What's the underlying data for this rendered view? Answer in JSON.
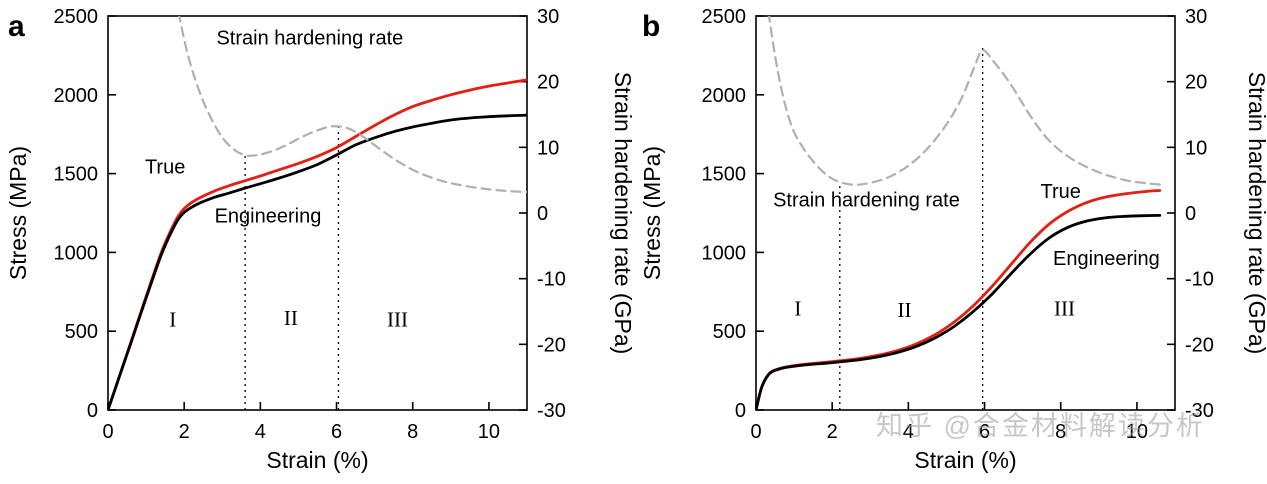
{
  "watermark": "知乎 @合金材料解读分析",
  "colors": {
    "true_curve": "#e41e10",
    "engineering_curve": "#000000",
    "hardening_curve": "#b0b0b0",
    "hardening_label": "#a9a9a9",
    "axis": "#000000",
    "watermark": "#9b9b9b"
  },
  "chart_data": [
    {
      "type": "line",
      "panel_label": "a",
      "xlabel": "Strain (%)",
      "ylabel_left": "Stress (MPa)",
      "ylabel_right": "Strain hardening rate (GPa)",
      "xlim": [
        0,
        11
      ],
      "ylim_left": [
        0,
        2500
      ],
      "ylim_right": [
        -30,
        30
      ],
      "x_ticks": [
        0,
        2,
        4,
        6,
        8,
        10
      ],
      "y_ticks_left": [
        0,
        500,
        1000,
        1500,
        2000,
        2500
      ],
      "y_ticks_right": [
        -30,
        -20,
        -10,
        0,
        10,
        20,
        30
      ],
      "grid": false,
      "dividers": [
        {
          "x": 3.6,
          "y_top": 1620
        },
        {
          "x": 6.05,
          "y_top": 1800
        }
      ],
      "regions": [
        {
          "label": "I",
          "x": 1.7,
          "y": 530
        },
        {
          "label": "II",
          "x": 4.8,
          "y": 540
        },
        {
          "label": "III",
          "x": 7.6,
          "y": 530
        }
      ],
      "annotations": [
        {
          "text": "Strain hardening rate",
          "color_key": "hardening_label",
          "x": 5.3,
          "y": 2320
        },
        {
          "text": "True",
          "color_key": "true_curve",
          "x": 1.5,
          "y": 1500
        },
        {
          "text": "Engineering",
          "color_key": "engineering_curve",
          "x": 4.2,
          "y": 1190
        }
      ],
      "series": [
        {
          "name": "True",
          "axis": "left",
          "color_key": "true_curve",
          "dash": "solid",
          "x": [
            0,
            0.3,
            0.6,
            1.0,
            1.4,
            1.7,
            1.9,
            2.1,
            2.4,
            2.8,
            3.2,
            3.6,
            4.0,
            4.5,
            5.0,
            5.5,
            6.0,
            6.5,
            7.0,
            7.5,
            8.0,
            8.5,
            9.0,
            9.5,
            10.0,
            10.5,
            11.0
          ],
          "y": [
            0,
            215,
            430,
            720,
            1000,
            1165,
            1250,
            1300,
            1345,
            1390,
            1425,
            1455,
            1485,
            1525,
            1565,
            1610,
            1665,
            1735,
            1805,
            1870,
            1925,
            1965,
            2000,
            2030,
            2055,
            2075,
            2095
          ]
        },
        {
          "name": "Engineering",
          "axis": "left",
          "color_key": "engineering_curve",
          "dash": "solid",
          "x": [
            0,
            0.3,
            0.6,
            1.0,
            1.4,
            1.7,
            1.9,
            2.1,
            2.4,
            2.8,
            3.2,
            3.6,
            4.0,
            4.5,
            5.0,
            5.5,
            6.0,
            6.5,
            7.0,
            7.5,
            8.0,
            8.5,
            9.0,
            9.5,
            10.0,
            10.5,
            11.0
          ],
          "y": [
            0,
            212,
            425,
            710,
            985,
            1148,
            1228,
            1272,
            1312,
            1350,
            1378,
            1408,
            1436,
            1472,
            1512,
            1558,
            1618,
            1682,
            1727,
            1766,
            1796,
            1820,
            1840,
            1853,
            1861,
            1867,
            1871
          ]
        },
        {
          "name": "Strain hardening rate",
          "axis": "right",
          "color_key": "hardening_curve",
          "dash": "dashed",
          "x": [
            1.85,
            2.1,
            2.4,
            2.7,
            3.0,
            3.3,
            3.6,
            3.9,
            4.3,
            4.7,
            5.1,
            5.5,
            5.9,
            6.3,
            6.7,
            7.1,
            7.6,
            8.1,
            8.7,
            9.3,
            10.0,
            10.6,
            11.0
          ],
          "y": [
            30.5,
            24,
            18.5,
            14.5,
            11.5,
            9.7,
            8.8,
            8.8,
            9.4,
            10.4,
            11.6,
            12.6,
            13.2,
            12.9,
            11.6,
            9.9,
            7.9,
            6.3,
            5.0,
            4.2,
            3.6,
            3.3,
            3.2
          ]
        }
      ]
    },
    {
      "type": "line",
      "panel_label": "b",
      "xlabel": "Strain (%)",
      "ylabel_left": "Stress (MPa)",
      "ylabel_right": "Strain hardening rate (GPa)",
      "xlim": [
        0,
        11
      ],
      "ylim_left": [
        0,
        2500
      ],
      "ylim_right": [
        -30,
        30
      ],
      "x_ticks": [
        0,
        2,
        4,
        6,
        8,
        10
      ],
      "y_ticks_left": [
        0,
        500,
        1000,
        1500,
        2000,
        2500
      ],
      "y_ticks_right": [
        -30,
        -20,
        -10,
        0,
        10,
        20,
        30
      ],
      "grid": false,
      "dividers": [
        {
          "x": 2.2,
          "y_top": 1430
        },
        {
          "x": 5.95,
          "y_top": 2300
        }
      ],
      "regions": [
        {
          "label": "I",
          "x": 1.1,
          "y": 600
        },
        {
          "label": "II",
          "x": 3.9,
          "y": 590
        },
        {
          "label": "III",
          "x": 8.1,
          "y": 600
        }
      ],
      "annotations": [
        {
          "text": "Strain hardening rate",
          "color_key": "hardening_label",
          "x": 2.9,
          "y": 1290
        },
        {
          "text": "True",
          "color_key": "true_curve",
          "x": 8.0,
          "y": 1345
        },
        {
          "text": "Engineering",
          "color_key": "engineering_curve",
          "x": 9.2,
          "y": 920
        }
      ],
      "series": [
        {
          "name": "True",
          "axis": "left",
          "color_key": "true_curve",
          "dash": "solid",
          "x": [
            0,
            0.15,
            0.35,
            0.6,
            0.9,
            1.3,
            1.8,
            2.2,
            2.7,
            3.2,
            3.7,
            4.2,
            4.7,
            5.2,
            5.7,
            6.2,
            6.7,
            7.2,
            7.7,
            8.2,
            8.7,
            9.2,
            9.7,
            10.2,
            10.6
          ],
          "y": [
            0,
            145,
            232,
            262,
            278,
            291,
            302,
            312,
            326,
            347,
            376,
            418,
            478,
            558,
            660,
            785,
            925,
            1065,
            1180,
            1262,
            1318,
            1352,
            1372,
            1386,
            1393
          ]
        },
        {
          "name": "Engineering",
          "axis": "left",
          "color_key": "engineering_curve",
          "dash": "solid",
          "x": [
            0,
            0.15,
            0.35,
            0.6,
            0.9,
            1.3,
            1.8,
            2.2,
            2.7,
            3.2,
            3.7,
            4.2,
            4.7,
            5.2,
            5.7,
            6.2,
            6.7,
            7.2,
            7.7,
            8.2,
            8.7,
            9.2,
            9.7,
            10.2,
            10.6
          ],
          "y": [
            0,
            144,
            230,
            259,
            274,
            286,
            296,
            305,
            318,
            337,
            364,
            402,
            457,
            530,
            624,
            736,
            866,
            990,
            1092,
            1160,
            1200,
            1220,
            1229,
            1233,
            1235
          ]
        },
        {
          "name": "Strain hardening rate",
          "axis": "right",
          "color_key": "hardening_curve",
          "dash": "dashed",
          "x": [
            0.33,
            0.5,
            0.7,
            0.95,
            1.25,
            1.6,
            1.9,
            2.2,
            2.6,
            3.0,
            3.5,
            4.0,
            4.5,
            5.0,
            5.4,
            5.75,
            5.95,
            6.25,
            6.7,
            7.2,
            7.7,
            8.3,
            9.0,
            9.7,
            10.3,
            10.7
          ],
          "y": [
            30.5,
            24.0,
            18.0,
            13.0,
            9.8,
            7.2,
            5.6,
            4.7,
            4.3,
            4.6,
            5.5,
            7.2,
            9.8,
            13.5,
            17.5,
            22.5,
            24.8,
            23.0,
            19.5,
            14.8,
            11.0,
            8.2,
            6.2,
            5.0,
            4.5,
            4.3
          ]
        }
      ]
    }
  ]
}
